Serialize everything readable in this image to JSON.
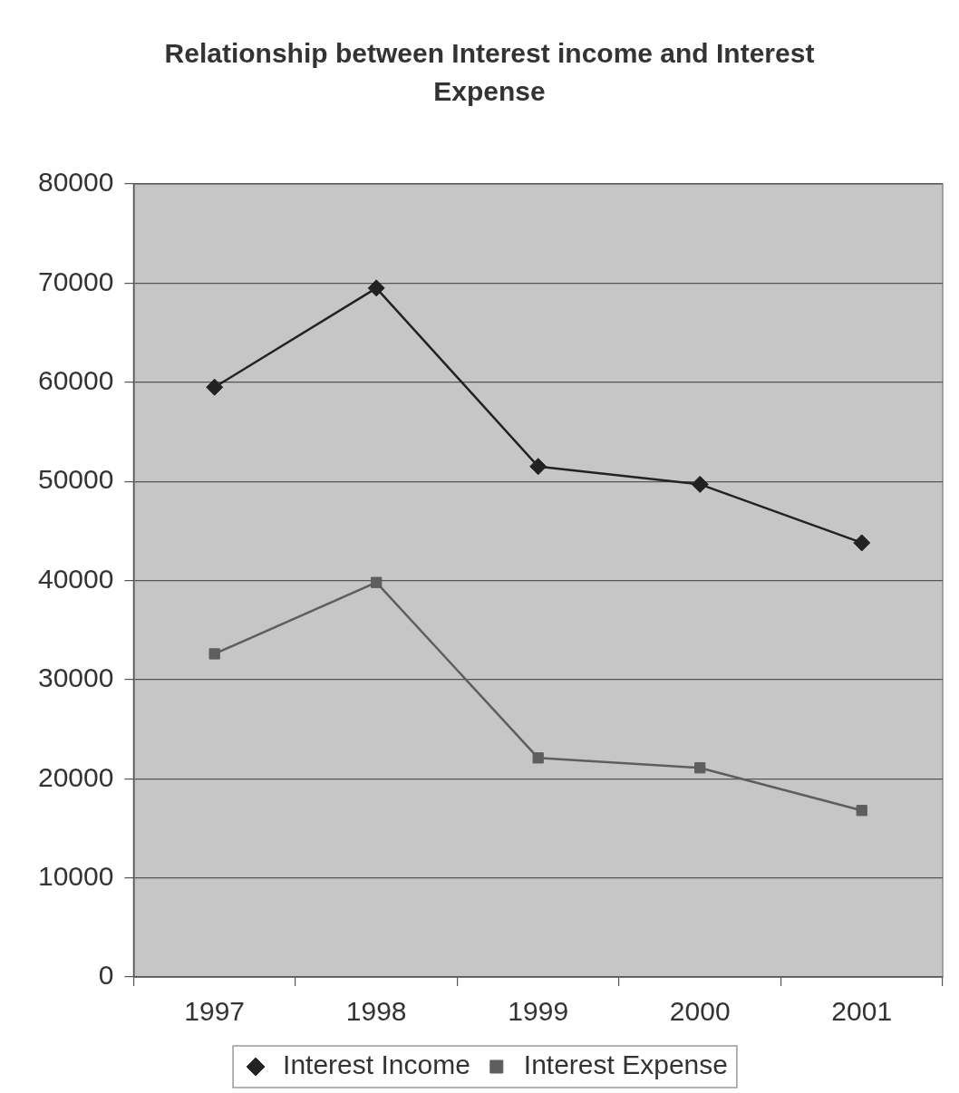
{
  "chart_data": {
    "type": "line",
    "title": "Relationship between Interest income and Interest Expense",
    "categories": [
      "1997",
      "1998",
      "1999",
      "2000",
      "2001"
    ],
    "series": [
      {
        "name": "Interest Income",
        "color": "#222222",
        "marker": "diamond",
        "values": [
          59500,
          69500,
          51500,
          49700,
          43800
        ]
      },
      {
        "name": "Interest Expense",
        "color": "#5e5e5e",
        "marker": "square",
        "values": [
          32600,
          39800,
          22100,
          21100,
          16800
        ]
      }
    ],
    "ylim": [
      0,
      80000
    ],
    "yticks": [
      0,
      10000,
      20000,
      30000,
      40000,
      50000,
      60000,
      70000,
      80000
    ],
    "grid": "y",
    "legend": "bottom",
    "line_style": "solid"
  }
}
